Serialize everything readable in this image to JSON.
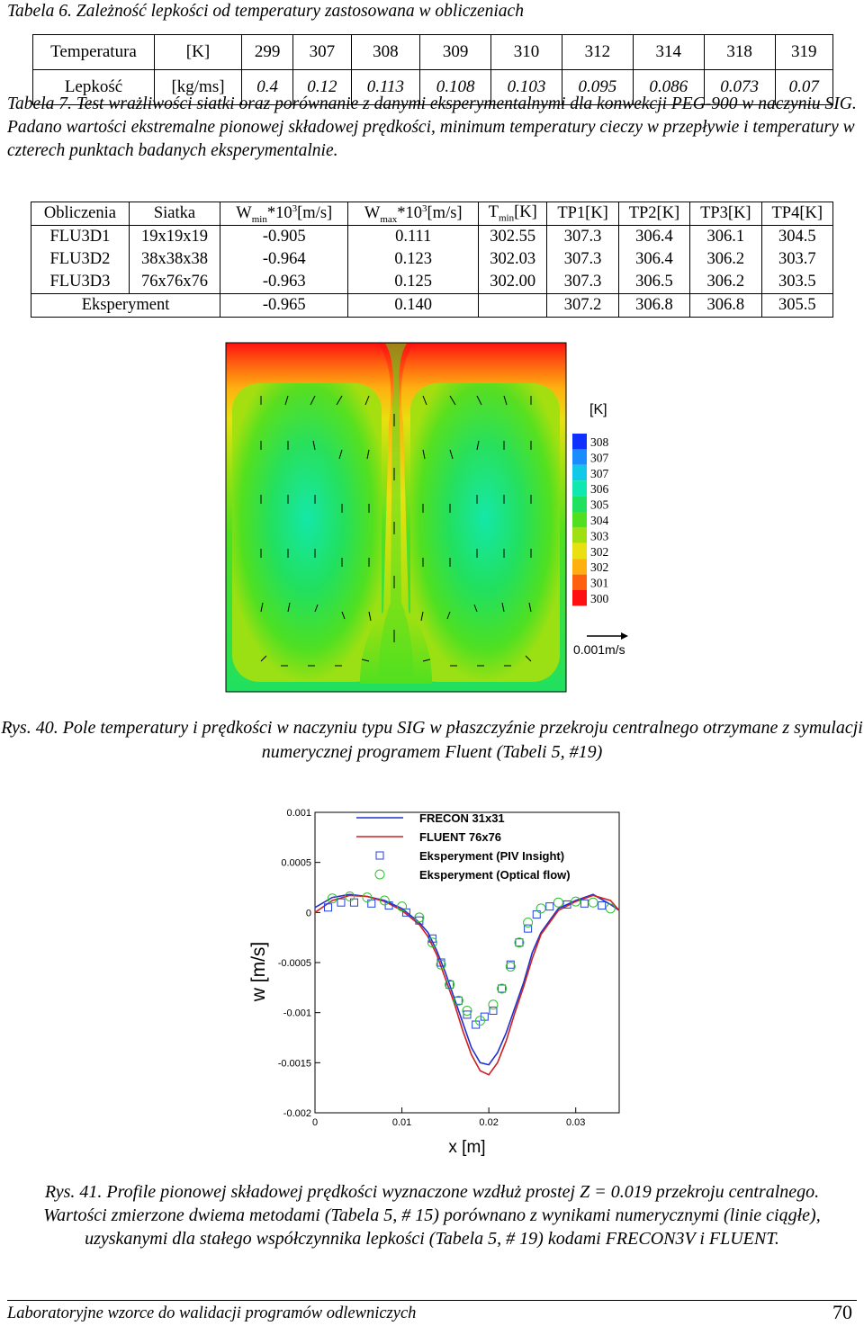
{
  "table6": {
    "caption": "Tabela 6. Zależność lepkości od temperatury zastosowana w obliczeniach",
    "rows": [
      {
        "name": "Temperatura",
        "unit": "[K]",
        "values": [
          "299",
          "307",
          "308",
          "309",
          "310",
          "312",
          "314",
          "318",
          "319"
        ]
      },
      {
        "name": "Lepkość",
        "unit": "[kg/ms]",
        "values": [
          "0.4",
          "0.12",
          "0.113",
          "0.108",
          "0.103",
          "0.095",
          "0.086",
          "0.073",
          "0.07"
        ]
      }
    ]
  },
  "table7": {
    "caption": "Tabela 7. Test wrażliwości siatki oraz porównanie z danymi eksperymentalnymi dla konwekcji PEG-900 w naczyniu SIG. Padano wartości ekstremalne pionowej składowej prędkości, minimum temperatury cieczy w przepływie i temperatury w czterech punktach badanych eksperymentalnie.",
    "headers": {
      "h0": "Obliczenia",
      "h1": "Siatka",
      "h2a": "W",
      "h2s": "min",
      "h2b": "*10",
      "h2p": "3",
      "h2c": "[m/s]",
      "h3a": "W",
      "h3s": "max",
      "h3b": "*10",
      "h3p": "3",
      "h3c": "[m/s]",
      "h4a": "T",
      "h4s": "min",
      "h4c": "[K]",
      "h5": "TP1[K]",
      "h6": "TP2[K]",
      "h7": "TP3[K]",
      "h8": "TP4[K]"
    },
    "rows": [
      [
        "FLU3D1",
        "19x19x19",
        "-0.905",
        "0.111",
        "302.55",
        "307.3",
        "306.4",
        "306.1",
        "304.5"
      ],
      [
        "FLU3D2",
        "38x38x38",
        "-0.964",
        "0.123",
        "302.03",
        "307.3",
        "306.4",
        "306.2",
        "303.7"
      ],
      [
        "FLU3D3",
        "76x76x76",
        "-0.963",
        "0.125",
        "302.00",
        "307.3",
        "306.5",
        "306.2",
        "303.5"
      ]
    ],
    "exp_row": [
      "Eksperyment",
      "-0.965",
      "0.140",
      "",
      "307.2",
      "306.8",
      "306.8",
      "305.5"
    ]
  },
  "figure40": {
    "legend_unit": "[K]",
    "legend_labels": [
      "308",
      "307",
      "307",
      "306",
      "305",
      "304",
      "303",
      "302",
      "302",
      "301",
      "300"
    ],
    "legend_colors": [
      "#1030ff",
      "#1a8cff",
      "#10c8e8",
      "#10e8b0",
      "#20e060",
      "#50e020",
      "#a0e010",
      "#e8e010",
      "#ffb010",
      "#ff6010",
      "#ff1010"
    ],
    "vector_label": "0.001m/s",
    "caption": "Rys. 40. Pole temperatury i prędkości w naczyniu typu SIG w płaszczyźnie przekroju centralnego otrzymane z symulacji numerycznej programem Fluent (Tabeli 5, #19)"
  },
  "chart_data": {
    "type": "line",
    "xlabel": "x [m]",
    "ylabel": "w [m/s]",
    "xlim": [
      0,
      0.035
    ],
    "ylim": [
      -0.002,
      0.001
    ],
    "xticks": [
      "0",
      "0.01",
      "0.02",
      "0.03"
    ],
    "yticks": [
      "0.001",
      "0.0005",
      "0",
      "-0.0005",
      "-0.001",
      "-0.0015",
      "-0.002"
    ],
    "legend_position": "top-right",
    "series": [
      {
        "name": "FRECON 31x31",
        "kind": "line",
        "color": "#2030d0",
        "x": [
          0.0,
          0.002,
          0.004,
          0.006,
          0.008,
          0.01,
          0.012,
          0.013,
          0.014,
          0.015,
          0.016,
          0.017,
          0.018,
          0.019,
          0.02,
          0.021,
          0.022,
          0.023,
          0.024,
          0.025,
          0.026,
          0.028,
          0.03,
          0.032,
          0.034,
          0.035
        ],
        "y": [
          5e-05,
          0.00015,
          0.00018,
          0.00016,
          0.00012,
          4e-05,
          -0.0001,
          -0.0002,
          -0.00038,
          -0.0006,
          -0.00085,
          -0.0011,
          -0.00135,
          -0.0015,
          -0.00152,
          -0.0014,
          -0.0012,
          -0.00095,
          -0.0007,
          -0.0004,
          -0.0002,
          4e-05,
          0.00012,
          0.00018,
          8e-05,
          2e-05
        ]
      },
      {
        "name": "FLUENT 76x76",
        "kind": "line",
        "color": "#d02020",
        "x": [
          0.0,
          0.002,
          0.004,
          0.006,
          0.008,
          0.01,
          0.012,
          0.013,
          0.014,
          0.015,
          0.016,
          0.017,
          0.018,
          0.019,
          0.02,
          0.021,
          0.022,
          0.023,
          0.024,
          0.025,
          0.026,
          0.028,
          0.03,
          0.032,
          0.034,
          0.035
        ],
        "y": [
          0.0,
          0.00012,
          0.00017,
          0.00016,
          0.00011,
          2e-05,
          -0.00012,
          -0.00024,
          -0.00042,
          -0.00066,
          -0.0009,
          -0.00118,
          -0.00142,
          -0.00158,
          -0.00162,
          -0.0015,
          -0.00128,
          -0.001,
          -0.00074,
          -0.00046,
          -0.00022,
          2e-05,
          0.00011,
          0.00017,
          0.00012,
          2e-05
        ]
      },
      {
        "name": "Eksperyment (PIV Insight)",
        "kind": "square",
        "color": "#2040e0",
        "x": [
          0.0015,
          0.003,
          0.0045,
          0.0065,
          0.0085,
          0.0105,
          0.012,
          0.0135,
          0.0145,
          0.0155,
          0.0165,
          0.0175,
          0.0185,
          0.0195,
          0.0205,
          0.0215,
          0.0225,
          0.0235,
          0.0245,
          0.0255,
          0.027,
          0.029,
          0.031,
          0.033
        ],
        "y": [
          5e-05,
          0.0001,
          0.0001,
          9e-05,
          7e-05,
          0.0,
          -8e-05,
          -0.00026,
          -0.0005,
          -0.00072,
          -0.00088,
          -0.00102,
          -0.00112,
          -0.00104,
          -0.00098,
          -0.00076,
          -0.00052,
          -0.0003,
          -0.00016,
          -2e-05,
          6e-05,
          8e-05,
          9e-05,
          7e-05
        ]
      },
      {
        "name": "Eksperyment (Optical flow)",
        "kind": "circle",
        "color": "#30c030",
        "x": [
          0.002,
          0.004,
          0.006,
          0.008,
          0.01,
          0.012,
          0.0135,
          0.0145,
          0.0155,
          0.0165,
          0.0175,
          0.019,
          0.0205,
          0.0215,
          0.0225,
          0.0235,
          0.0245,
          0.026,
          0.028,
          0.03,
          0.032,
          0.034
        ],
        "y": [
          0.00014,
          0.00016,
          0.00015,
          0.00012,
          6e-05,
          -5e-05,
          -0.0003,
          -0.00052,
          -0.00072,
          -0.00088,
          -0.00098,
          -0.00108,
          -0.00092,
          -0.00076,
          -0.00054,
          -0.0003,
          -0.0001,
          4e-05,
          0.0001,
          0.00011,
          0.0001,
          4e-05
        ]
      }
    ]
  },
  "figure41": {
    "caption": "Rys. 41. Profile pionowej składowej prędkości wyznaczone wzdłuż prostej Z = 0.019 przekroju centralnego. Wartości zmierzone dwiema metodami (Tabela 5, # 15) porównano z wynikami numerycznymi (linie ciągłe), uzyskanymi dla stałego współczynnika lepkości (Tabela 5, # 19) kodami FRECON3V i FLUENT."
  },
  "footer": {
    "text": "Laboratoryjne wzorce do walidacji programów odlewniczych",
    "page": "70"
  }
}
